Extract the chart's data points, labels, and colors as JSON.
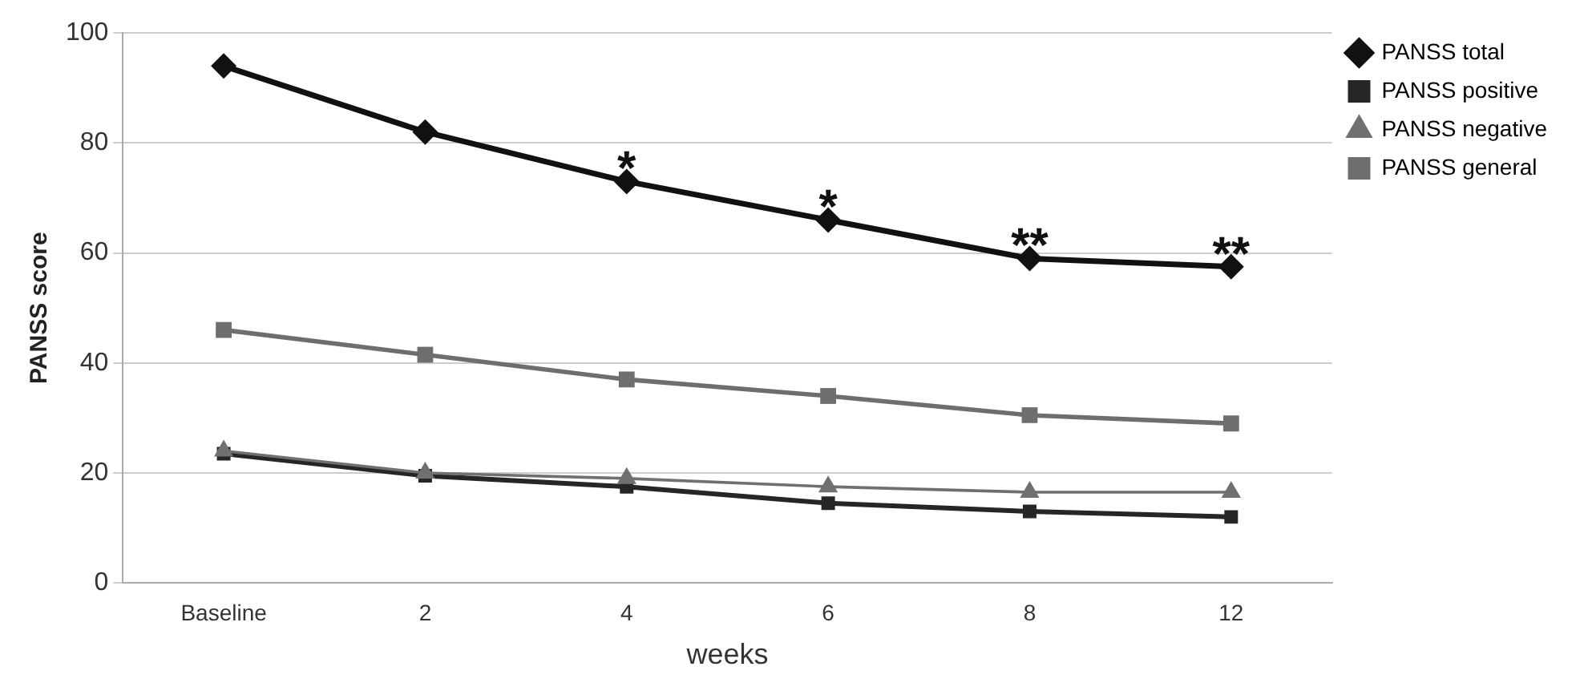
{
  "chart_data": {
    "type": "line",
    "xlabel": "weeks",
    "ylabel": "PANSS score",
    "categories": [
      "Baseline",
      "2",
      "4",
      "6",
      "8",
      "12"
    ],
    "series": [
      {
        "name": "PANSS total",
        "color": "#111111",
        "marker": "diamond",
        "values": [
          94,
          82,
          73,
          66,
          59,
          57.5
        ]
      },
      {
        "name": "PANSS positive",
        "color": "#262626",
        "marker": "square",
        "values": [
          23.5,
          19.5,
          17.5,
          14.5,
          13,
          12
        ]
      },
      {
        "name": "PANSS negative",
        "color": "#707070",
        "marker": "triangle",
        "values": [
          24,
          20,
          19,
          17.5,
          16.5,
          16.5
        ]
      },
      {
        "name": "PANSS general",
        "color": "#6e6e6e",
        "marker": "square",
        "values": [
          46,
          41.5,
          37,
          34,
          30.5,
          29
        ]
      }
    ],
    "annotations": [
      {
        "text": "*",
        "x": "4",
        "y": 73
      },
      {
        "text": "*",
        "x": "6",
        "y": 66
      },
      {
        "text": "**",
        "x": "8",
        "y": 59
      },
      {
        "text": "**",
        "x": "12",
        "y": 57.5
      }
    ],
    "ylim": [
      0,
      100
    ],
    "yticks": [
      0,
      20,
      40,
      60,
      80,
      100
    ],
    "grid": "y",
    "legend": "top right"
  }
}
